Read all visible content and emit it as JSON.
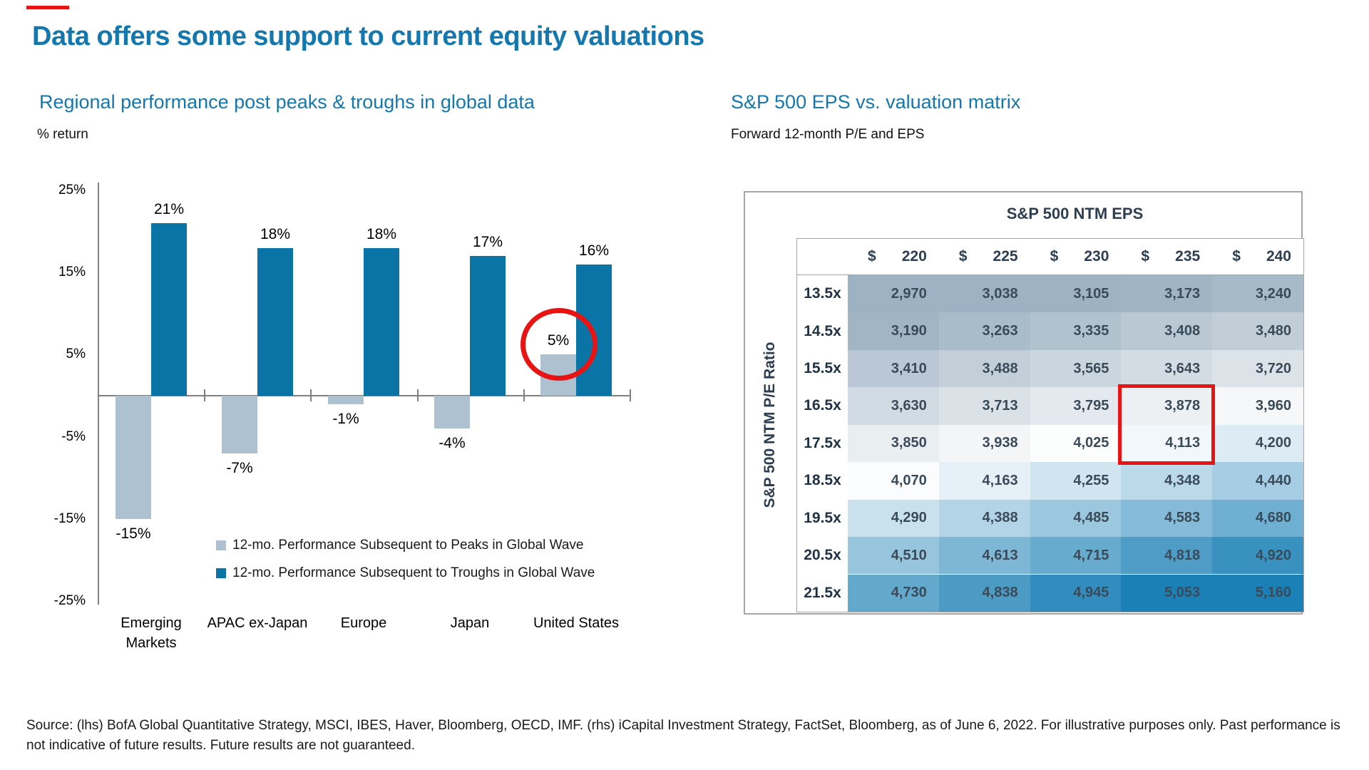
{
  "colors": {
    "accent_blue": "#1478ae",
    "bar_dark_blue": "#0a74a6",
    "bar_light_blue": "#aec1d1",
    "highlight_red": "#e81414",
    "axis_gray": "#7f7f7f",
    "table_border_gray": "#a6a6a6",
    "heat_gray_end": "#9db2c2",
    "heat_blue_end": "#1a80b6"
  },
  "header": {
    "title": "Data offers some support to current equity valuations"
  },
  "chart_data": [
    {
      "type": "bar",
      "title": "Regional performance post peaks & troughs in global data",
      "unit": "% return",
      "categories": [
        "Emerging\nMarkets",
        "APAC ex-Japan",
        "Europe",
        "Japan",
        "United States"
      ],
      "series": [
        {
          "name": "12-mo. Performance Subsequent to Peaks in Global Wave",
          "color": "#aec1d1",
          "values": [
            -15,
            -7,
            -1,
            -4,
            5
          ],
          "labels": [
            "-15%",
            "-7%",
            "-1%",
            "-4%",
            "5%"
          ]
        },
        {
          "name": "12-mo. Performance Subsequent to Troughs in Global Wave",
          "color": "#0a74a6",
          "values": [
            21,
            18,
            18,
            17,
            16
          ],
          "labels": [
            "21%",
            "18%",
            "18%",
            "17%",
            "16%"
          ]
        }
      ],
      "yticks": [
        {
          "v": 25,
          "label": "25%"
        },
        {
          "v": 15,
          "label": "15%"
        },
        {
          "v": 5,
          "label": "5%"
        },
        {
          "v": -5,
          "label": "-5%"
        },
        {
          "v": -15,
          "label": "-15%"
        },
        {
          "v": -25,
          "label": "-25%"
        }
      ],
      "ylim": [
        -25,
        25
      ],
      "grid": false,
      "legend_position": "bottom-center",
      "annotation": {
        "type": "circle",
        "note": "red circle around United States 5% peak bar and its label"
      }
    },
    {
      "type": "heatmap",
      "panel_title": "S&P 500 EPS vs. valuation matrix",
      "panel_caption": "Forward 12-month P/E and EPS",
      "matrix_title": "S&P 500 NTM EPS",
      "row_axis_label": "S&P 500 NTM P/E Ratio",
      "currency_symbol": "$",
      "col_headers": [
        "220",
        "225",
        "230",
        "235",
        "240"
      ],
      "row_headers": [
        "13.5x",
        "14.5x",
        "15.5x",
        "16.5x",
        "17.5x",
        "18.5x",
        "19.5x",
        "20.5x",
        "21.5x"
      ],
      "values": [
        [
          2970,
          3038,
          3105,
          3173,
          3240
        ],
        [
          3190,
          3263,
          3335,
          3408,
          3480
        ],
        [
          3410,
          3488,
          3565,
          3643,
          3720
        ],
        [
          3630,
          3713,
          3795,
          3878,
          3960
        ],
        [
          3850,
          3938,
          4025,
          4113,
          4200
        ],
        [
          4070,
          4163,
          4255,
          4348,
          4440
        ],
        [
          4290,
          4388,
          4485,
          4583,
          4680
        ],
        [
          4510,
          4613,
          4715,
          4818,
          4920
        ],
        [
          4730,
          4838,
          4945,
          5053,
          5160
        ]
      ],
      "highlight": {
        "note": "red rectangle around $235 column, rows 16.5x and 17.5x",
        "col_index": 3,
        "row_start": 3,
        "row_end": 4
      },
      "color_scale": {
        "white_point": 4050,
        "low_end_color": "#9db2c2",
        "high_end_color": "#1a80b6"
      }
    }
  ],
  "footer": {
    "text": "Source: (lhs) BofA Global Quantitative Strategy, MSCI, IBES, Haver, Bloomberg, OECD, IMF. (rhs) iCapital Investment Strategy, FactSet, Bloomberg, as of June 6, 2022. For illustrative purposes only. Past performance is\nnot indicative of future results. Future results are not guaranteed."
  }
}
